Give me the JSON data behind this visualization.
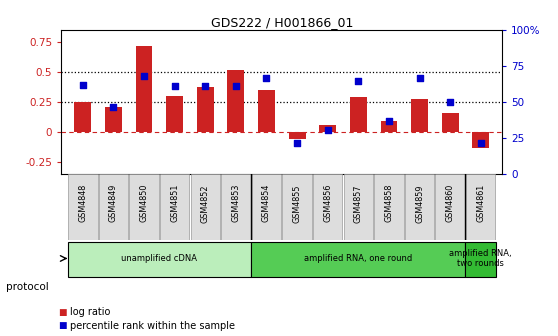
{
  "title": "GDS222 / H001866_01",
  "samples": [
    "GSM4848",
    "GSM4849",
    "GSM4850",
    "GSM4851",
    "GSM4852",
    "GSM4853",
    "GSM4854",
    "GSM4855",
    "GSM4856",
    "GSM4857",
    "GSM4858",
    "GSM4859",
    "GSM4860",
    "GSM4861"
  ],
  "log_ratio": [
    0.25,
    0.21,
    0.72,
    0.3,
    0.38,
    0.52,
    0.35,
    -0.06,
    0.06,
    0.29,
    0.09,
    0.28,
    0.16,
    -0.13
  ],
  "percentile": [
    62,
    47,
    68,
    61,
    61,
    61,
    67,
    22,
    31,
    65,
    37,
    67,
    50,
    22
  ],
  "bar_color": "#cc2222",
  "dot_color": "#0000cc",
  "ylim_left": [
    -0.35,
    0.85
  ],
  "ylim_right": [
    0,
    100
  ],
  "yticks_left": [
    -0.25,
    0.0,
    0.25,
    0.5,
    0.75
  ],
  "yticks_right": [
    0,
    25,
    50,
    75,
    100
  ],
  "hline1": 0.25,
  "hline2": 0.5,
  "hline_color": "black",
  "zero_line_color": "#cc2222",
  "protocols": [
    {
      "label": "unamplified cDNA",
      "indices": [
        0,
        5
      ],
      "color": "#bbeebb"
    },
    {
      "label": "amplified RNA, one round",
      "indices": [
        6,
        12
      ],
      "color": "#55cc55"
    },
    {
      "label": "amplified RNA,\ntwo rounds",
      "indices": [
        13,
        13
      ],
      "color": "#33bb33"
    }
  ],
  "xlabel_protocol": "protocol",
  "legend_log": "log ratio",
  "legend_pct": "percentile rank within the sample",
  "bar_color_legend": "#cc2222",
  "dot_color_legend": "#0000cc",
  "bar_width": 0.55,
  "title_fontsize": 9,
  "tick_fontsize": 7.5,
  "xlabel_fontsize": 7.5
}
